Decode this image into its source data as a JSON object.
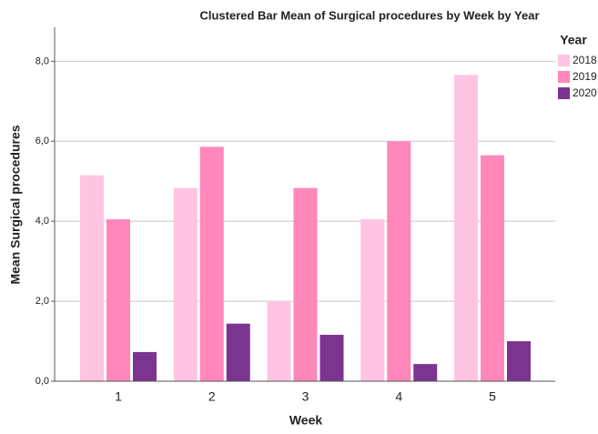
{
  "chart_data": {
    "type": "bar",
    "title": "Clustered Bar Mean of Surgical procedures by Week by Year",
    "x_label": "Week",
    "y_label": "Mean Surgical procedures",
    "legend_title": "Year",
    "legend": "top-right",
    "categories": [
      "1",
      "2",
      "3",
      "4",
      "5"
    ],
    "series": [
      {
        "name": "2018",
        "color": "#ffc4e1",
        "values": [
          5.15,
          4.83,
          2.0,
          4.05,
          7.66
        ]
      },
      {
        "name": "2019",
        "color": "#ff87b9",
        "values": [
          4.05,
          5.86,
          4.83,
          6.0,
          5.65
        ]
      },
      {
        "name": "2020",
        "color": "#7b3590",
        "values": [
          0.73,
          1.44,
          1.16,
          0.43,
          1.0
        ]
      }
    ],
    "ylim": [
      0,
      8.85
    ],
    "yticks": [
      {
        "value": 0,
        "label": "0,0"
      },
      {
        "value": 2,
        "label": "2,0"
      },
      {
        "value": 4,
        "label": "4,0"
      },
      {
        "value": 6,
        "label": "6,0"
      },
      {
        "value": 8,
        "label": "8,0"
      }
    ],
    "grid": true
  }
}
